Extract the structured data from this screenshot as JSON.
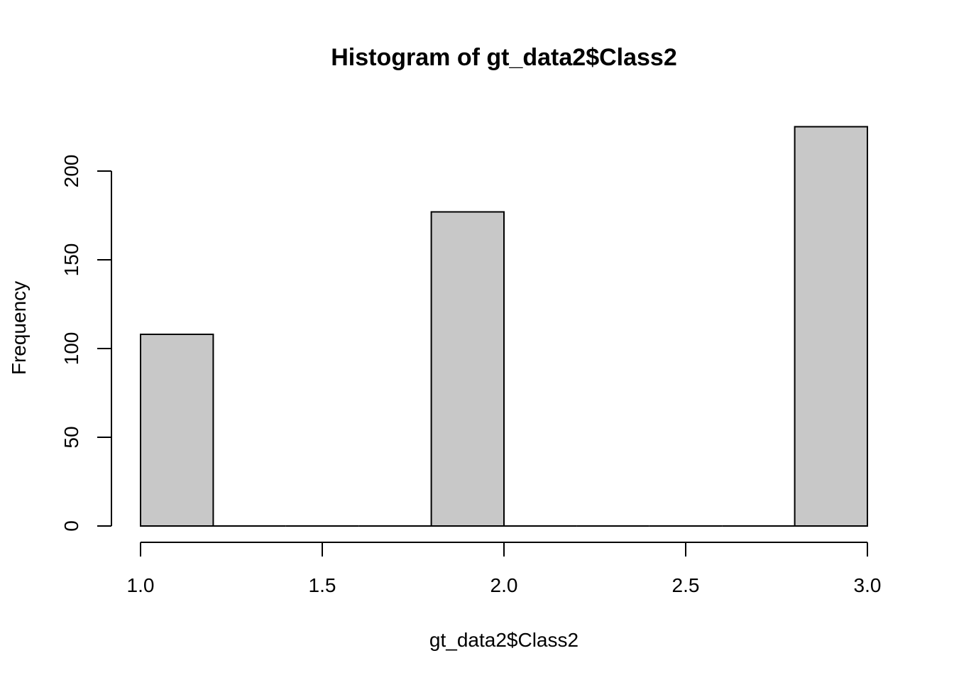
{
  "chart_data": {
    "type": "bar",
    "title": "Histogram of gt_data2$Class2",
    "xlabel": "gt_data2$Class2",
    "ylabel": "Frequency",
    "bins": [
      {
        "start": 1.0,
        "end": 1.2,
        "count": 108
      },
      {
        "start": 1.2,
        "end": 1.4,
        "count": 0
      },
      {
        "start": 1.4,
        "end": 1.6,
        "count": 0
      },
      {
        "start": 1.6,
        "end": 1.8,
        "count": 0
      },
      {
        "start": 1.8,
        "end": 2.0,
        "count": 177
      },
      {
        "start": 2.0,
        "end": 2.2,
        "count": 0
      },
      {
        "start": 2.2,
        "end": 2.4,
        "count": 0
      },
      {
        "start": 2.4,
        "end": 2.6,
        "count": 0
      },
      {
        "start": 2.6,
        "end": 2.8,
        "count": 0
      },
      {
        "start": 2.8,
        "end": 3.0,
        "count": 225
      }
    ],
    "xlim": [
      1.0,
      3.0
    ],
    "ylim": [
      0,
      225
    ],
    "x_ticks": [
      "1.0",
      "1.5",
      "2.0",
      "2.5",
      "3.0"
    ],
    "y_ticks": [
      "0",
      "50",
      "100",
      "150",
      "200"
    ],
    "grid": false,
    "bar_color": "#c8c8c8",
    "border_color": "#000000"
  }
}
